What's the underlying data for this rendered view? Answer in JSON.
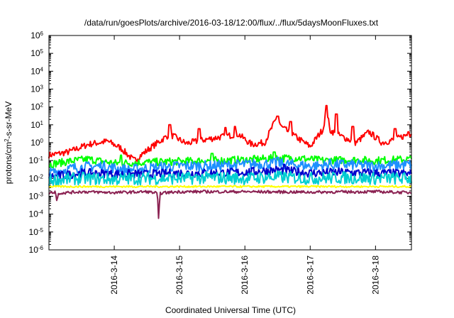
{
  "chart_data": {
    "type": "line",
    "title": "/data/run/goesPlots/archive/2016-03-18/12:00/flux/../flux/5daysMoonFluxes.txt",
    "xlabel": "Coordinated Universal Time (UTC)",
    "ylabel": "protons/cm2-s-sr-MeV",
    "ylabel_parts": {
      "pre": "protons/cm",
      "sup": "2",
      "post": "-s-sr-MeV"
    },
    "yscale": "log",
    "ylim_exp": [
      -6,
      6
    ],
    "y_tick_base": "10",
    "y_tick_exponents": [
      "-6",
      "-5",
      "-4",
      "-3",
      "-2",
      "-1",
      "0",
      "1",
      "2",
      "3",
      "4",
      "5",
      "6"
    ],
    "xlim_days": [
      13.0,
      18.55
    ],
    "x_ticks": [
      {
        "label": "2016-3-14",
        "day": 14
      },
      {
        "label": "2016-3-15",
        "day": 15
      },
      {
        "label": "2016-3-16",
        "day": 16
      },
      {
        "label": "2016-3-17",
        "day": 17
      },
      {
        "label": "2016-3-18",
        "day": 18
      }
    ],
    "grid": false,
    "series": [
      {
        "color": "#ff0000",
        "baseline": 0.9,
        "noise": 0.18,
        "points": [
          [
            13.0,
            0.2
          ],
          [
            13.3,
            0.3
          ],
          [
            13.6,
            0.8
          ],
          [
            13.9,
            1.2
          ],
          [
            14.1,
            0.5
          ],
          [
            14.3,
            0.1
          ],
          [
            14.55,
            0.5
          ],
          [
            14.85,
            3.0
          ],
          [
            15.1,
            0.9
          ],
          [
            15.4,
            1.5
          ],
          [
            15.6,
            2.0
          ],
          [
            15.9,
            3.0
          ],
          [
            16.1,
            0.8
          ],
          [
            16.3,
            1.0
          ],
          [
            16.5,
            30
          ],
          [
            16.55,
            8
          ],
          [
            16.75,
            2.5
          ],
          [
            17.0,
            0.6
          ],
          [
            17.2,
            6
          ],
          [
            17.25,
            100
          ],
          [
            17.3,
            5
          ],
          [
            17.45,
            2.5
          ],
          [
            17.7,
            1.0
          ],
          [
            17.9,
            4.0
          ],
          [
            18.1,
            1.0
          ],
          [
            18.3,
            1.5
          ],
          [
            18.55,
            3.5
          ]
        ],
        "spikes": [
          [
            13.5,
            0.3
          ],
          [
            14.05,
            0.25
          ],
          [
            14.85,
            10
          ],
          [
            15.3,
            6
          ],
          [
            15.7,
            7
          ],
          [
            15.85,
            8
          ],
          [
            16.45,
            8
          ],
          [
            16.5,
            30
          ],
          [
            16.7,
            15
          ],
          [
            17.25,
            120
          ],
          [
            17.4,
            40
          ],
          [
            17.65,
            8
          ],
          [
            18.3,
            6
          ],
          [
            18.5,
            4
          ]
        ]
      },
      {
        "color": "#00ff00",
        "baseline": 0.1,
        "noise": 0.22,
        "points": [
          [
            13.0,
            0.06
          ],
          [
            13.3,
            0.09
          ],
          [
            13.6,
            0.12
          ],
          [
            14.0,
            0.07
          ],
          [
            14.5,
            0.08
          ],
          [
            15.0,
            0.09
          ],
          [
            15.5,
            0.1
          ],
          [
            16.0,
            0.11
          ],
          [
            16.4,
            0.13
          ],
          [
            16.8,
            0.14
          ],
          [
            17.2,
            0.1
          ],
          [
            17.6,
            0.11
          ],
          [
            18.0,
            0.1
          ],
          [
            18.55,
            0.12
          ]
        ],
        "spikes": [
          [
            14.1,
            0.2
          ],
          [
            15.5,
            0.25
          ],
          [
            16.45,
            0.3
          ]
        ]
      },
      {
        "color": "#1e90ff",
        "baseline": 0.045,
        "noise": 0.3,
        "points": [
          [
            13.0,
            0.02
          ],
          [
            13.4,
            0.04
          ],
          [
            13.8,
            0.05
          ],
          [
            14.2,
            0.03
          ],
          [
            14.6,
            0.04
          ],
          [
            15.0,
            0.05
          ],
          [
            15.5,
            0.05
          ],
          [
            16.0,
            0.06
          ],
          [
            16.5,
            0.07
          ],
          [
            17.0,
            0.05
          ],
          [
            17.5,
            0.06
          ],
          [
            18.0,
            0.05
          ],
          [
            18.55,
            0.06
          ]
        ],
        "spikes": [
          [
            16.5,
            0.15
          ],
          [
            17.3,
            0.12
          ]
        ]
      },
      {
        "color": "#0000cd",
        "baseline": 0.02,
        "noise": 0.25,
        "points": [
          [
            13.0,
            0.012
          ],
          [
            13.5,
            0.02
          ],
          [
            14.0,
            0.018
          ],
          [
            14.5,
            0.017
          ],
          [
            15.0,
            0.02
          ],
          [
            15.5,
            0.02
          ],
          [
            16.0,
            0.022
          ],
          [
            16.5,
            0.03
          ],
          [
            17.0,
            0.02
          ],
          [
            17.5,
            0.022
          ],
          [
            18.0,
            0.02
          ],
          [
            18.55,
            0.018
          ]
        ],
        "spikes": [
          [
            16.6,
            0.06
          ]
        ]
      },
      {
        "color": "#00ced1",
        "baseline": 0.01,
        "noise": 0.35,
        "points": [
          [
            13.0,
            0.008
          ],
          [
            13.5,
            0.01
          ],
          [
            14.0,
            0.009
          ],
          [
            14.5,
            0.01
          ],
          [
            15.0,
            0.01
          ],
          [
            15.5,
            0.011
          ],
          [
            16.0,
            0.01
          ],
          [
            16.5,
            0.012
          ],
          [
            17.0,
            0.01
          ],
          [
            17.5,
            0.011
          ],
          [
            18.0,
            0.01
          ],
          [
            18.55,
            0.01
          ]
        ],
        "spikes": []
      },
      {
        "color": "#ffff00",
        "baseline": 0.0035,
        "noise": 0.05,
        "points": [
          [
            13.0,
            0.0035
          ],
          [
            18.55,
            0.0035
          ]
        ],
        "spikes": []
      },
      {
        "color": "#8b2252",
        "baseline": 0.0017,
        "noise": 0.08,
        "points": [
          [
            13.0,
            0.0015
          ],
          [
            13.1,
            0.0018
          ],
          [
            13.12,
            0.0006
          ],
          [
            13.15,
            0.0015
          ],
          [
            13.5,
            0.0018
          ],
          [
            14.0,
            0.0016
          ],
          [
            14.5,
            0.0018
          ],
          [
            14.66,
            0.0015
          ],
          [
            14.68,
            3.5e-05
          ],
          [
            14.7,
            0.0015
          ],
          [
            15.0,
            0.0018
          ],
          [
            16.0,
            0.0018
          ],
          [
            17.0,
            0.0017
          ],
          [
            18.0,
            0.0018
          ],
          [
            18.55,
            0.0016
          ]
        ],
        "spikes": []
      }
    ]
  }
}
